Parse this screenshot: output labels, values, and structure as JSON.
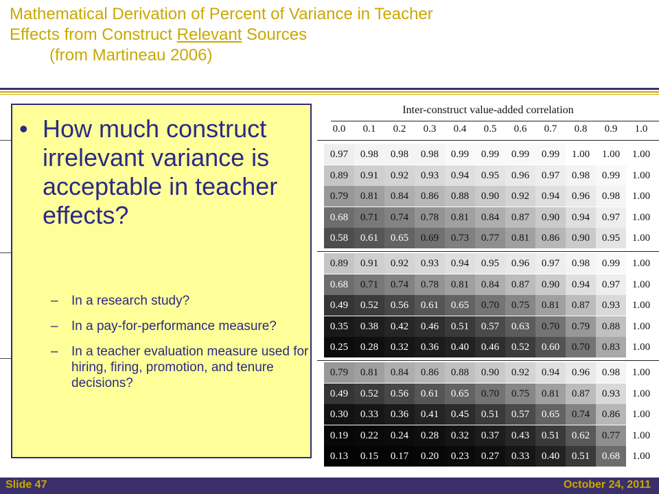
{
  "title": {
    "line1": "Mathematical Derivation of Percent of Variance in Teacher",
    "line2_pre": "Effects from Construct ",
    "line2_underlined": "Relevant",
    "line2_post": " Sources",
    "line3": "(from Martineau 2006)"
  },
  "table": {
    "header": "Inter-construct value-added correlation",
    "columns": [
      "0.0",
      "0.1",
      "0.2",
      "0.3",
      "0.4",
      "0.5",
      "0.6",
      "0.7",
      "0.8",
      "0.9",
      "1.0"
    ],
    "rows": [
      [
        "0.97",
        "0.98",
        "0.98",
        "0.98",
        "0.99",
        "0.99",
        "0.99",
        "0.99",
        "1.00",
        "1.00",
        "1.00"
      ],
      [
        "0.89",
        "0.91",
        "0.92",
        "0.93",
        "0.94",
        "0.95",
        "0.96",
        "0.97",
        "0.98",
        "0.99",
        "1.00"
      ],
      [
        "0.79",
        "0.81",
        "0.84",
        "0.86",
        "0.88",
        "0.90",
        "0.92",
        "0.94",
        "0.96",
        "0.98",
        "1.00"
      ],
      [
        "0.68",
        "0.71",
        "0.74",
        "0.78",
        "0.81",
        "0.84",
        "0.87",
        "0.90",
        "0.94",
        "0.97",
        "1.00"
      ],
      [
        "0.58",
        "0.61",
        "0.65",
        "0.69",
        "0.73",
        "0.77",
        "0.81",
        "0.86",
        "0.90",
        "0.95",
        "1.00"
      ],
      [
        "0.89",
        "0.91",
        "0.92",
        "0.93",
        "0.94",
        "0.95",
        "0.96",
        "0.97",
        "0.98",
        "0.99",
        "1.00"
      ],
      [
        "0.68",
        "0.71",
        "0.74",
        "0.78",
        "0.81",
        "0.84",
        "0.87",
        "0.90",
        "0.94",
        "0.97",
        "1.00"
      ],
      [
        "0.49",
        "0.52",
        "0.56",
        "0.61",
        "0.65",
        "0.70",
        "0.75",
        "0.81",
        "0.87",
        "0.93",
        "1.00"
      ],
      [
        "0.35",
        "0.38",
        "0.42",
        "0.46",
        "0.51",
        "0.57",
        "0.63",
        "0.70",
        "0.79",
        "0.88",
        "1.00"
      ],
      [
        "0.25",
        "0.28",
        "0.32",
        "0.36",
        "0.40",
        "0.46",
        "0.52",
        "0.60",
        "0.70",
        "0.83",
        "1.00"
      ],
      [
        "0.79",
        "0.81",
        "0.84",
        "0.86",
        "0.88",
        "0.90",
        "0.92",
        "0.94",
        "0.96",
        "0.98",
        "1.00"
      ],
      [
        "0.49",
        "0.52",
        "0.56",
        "0.61",
        "0.65",
        "0.70",
        "0.75",
        "0.81",
        "0.87",
        "0.93",
        "1.00"
      ],
      [
        "0.30",
        "0.33",
        "0.36",
        "0.41",
        "0.45",
        "0.51",
        "0.57",
        "0.65",
        "0.74",
        "0.86",
        "1.00"
      ],
      [
        "0.19",
        "0.22",
        "0.24",
        "0.28",
        "0.32",
        "0.37",
        "0.43",
        "0.51",
        "0.62",
        "0.77",
        "1.00"
      ],
      [
        "0.13",
        "0.15",
        "0.17",
        "0.20",
        "0.23",
        "0.27",
        "0.33",
        "0.40",
        "0.51",
        "0.68",
        "1.00"
      ]
    ]
  },
  "callout": {
    "bullet": "•",
    "question": "How much construct irrelevant variance is acceptable in teacher effects?",
    "dash": "–",
    "items": [
      "In a research study?",
      "In a pay-for-performance measure?",
      "In a teacher evaluation measure used for hiring, firing, promotion, and tenure decisions?"
    ]
  },
  "footer": {
    "slide": "Slide 47",
    "date": "October 24, 2011"
  },
  "colors": {
    "title_gold": "#c9a800",
    "navy": "#3a2f6b",
    "callout_bg": "#ffff99",
    "callout_text": "#2b2a85"
  }
}
